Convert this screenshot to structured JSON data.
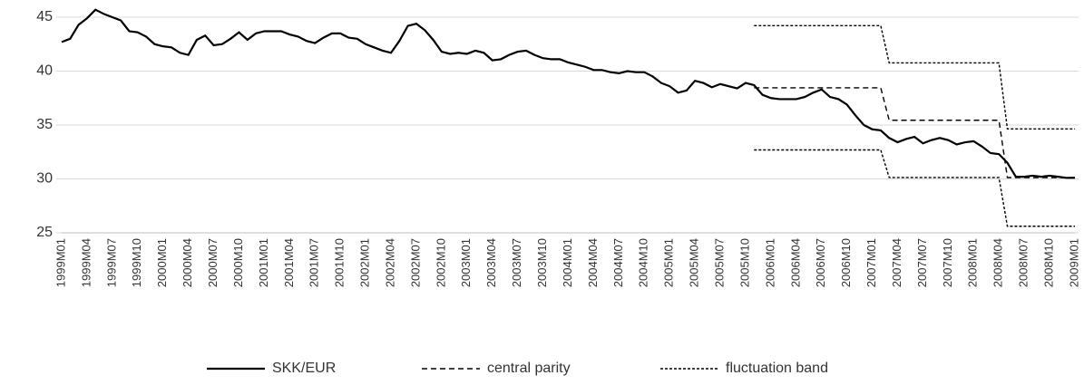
{
  "chart_data": {
    "type": "line",
    "categories": [
      "1999M01",
      null,
      null,
      "1999M04",
      null,
      null,
      "1999M07",
      null,
      null,
      "1999M10",
      null,
      null,
      "2000M01",
      null,
      null,
      "2000M04",
      null,
      null,
      "2000M07",
      null,
      null,
      "2000M10",
      null,
      null,
      "2001M01",
      null,
      null,
      "2001M04",
      null,
      null,
      "2001M07",
      null,
      null,
      "2001M10",
      null,
      null,
      "2002M01",
      null,
      null,
      "2002M04",
      null,
      null,
      "2002M07",
      null,
      null,
      "2002M10",
      null,
      null,
      "2003M01",
      null,
      null,
      "2003M04",
      null,
      null,
      "2003M07",
      null,
      null,
      "2003M10",
      null,
      null,
      "2004M01",
      null,
      null,
      "2004M04",
      null,
      null,
      "2004M07",
      null,
      null,
      "2004M10",
      null,
      null,
      "2005M01",
      null,
      null,
      "2005M04",
      null,
      null,
      "2005M07",
      null,
      null,
      "2005M10",
      null,
      null,
      "2006M01",
      null,
      null,
      "2006M04",
      null,
      null,
      "2006M07",
      null,
      null,
      "2006M10",
      null,
      null,
      "2007M01",
      null,
      null,
      "2007M04",
      null,
      null,
      "2007M07",
      null,
      null,
      "2007M10",
      null,
      null,
      "2008M01",
      null,
      null,
      "2008M04",
      null,
      null,
      "2008M07",
      null,
      null,
      "2008M10",
      null,
      null,
      "2009M01"
    ],
    "series": [
      {
        "name": "SKK/EUR",
        "color": "#000000",
        "dash": "none",
        "values": [
          42.7,
          43.0,
          44.3,
          44.9,
          45.7,
          45.3,
          45.0,
          44.7,
          43.7,
          43.6,
          43.2,
          42.5,
          42.3,
          42.2,
          41.7,
          41.5,
          42.9,
          43.3,
          42.4,
          42.5,
          43.0,
          43.6,
          42.9,
          43.5,
          43.7,
          43.7,
          43.7,
          43.4,
          43.2,
          42.8,
          42.6,
          43.1,
          43.5,
          43.5,
          43.1,
          43.0,
          42.5,
          42.2,
          41.9,
          41.7,
          42.8,
          44.2,
          44.4,
          43.8,
          42.9,
          41.8,
          41.6,
          41.7,
          41.6,
          41.9,
          41.7,
          41.0,
          41.1,
          41.5,
          41.8,
          41.9,
          41.5,
          41.2,
          41.1,
          41.1,
          40.8,
          40.6,
          40.4,
          40.1,
          40.1,
          39.9,
          39.8,
          40.0,
          39.9,
          39.9,
          39.5,
          38.9,
          38.6,
          38.0,
          38.2,
          39.1,
          38.9,
          38.5,
          38.8,
          38.6,
          38.4,
          38.9,
          38.7,
          37.8,
          37.5,
          37.4,
          37.4,
          37.4,
          37.6,
          38.0,
          38.3,
          37.6,
          37.4,
          36.9,
          35.9,
          35.0,
          34.6,
          34.5,
          33.8,
          33.4,
          33.7,
          33.9,
          33.3,
          33.6,
          33.8,
          33.6,
          33.2,
          33.4,
          33.5,
          33.0,
          32.4,
          32.3,
          31.5,
          30.2,
          30.2,
          30.3,
          30.2,
          30.3,
          30.2,
          30.1,
          30.1
        ]
      },
      {
        "name": "central parity",
        "color": "#000000",
        "dash": "6,4",
        "values": [
          null,
          null,
          null,
          null,
          null,
          null,
          null,
          null,
          null,
          null,
          null,
          null,
          null,
          null,
          null,
          null,
          null,
          null,
          null,
          null,
          null,
          null,
          null,
          null,
          null,
          null,
          null,
          null,
          null,
          null,
          null,
          null,
          null,
          null,
          null,
          null,
          null,
          null,
          null,
          null,
          null,
          null,
          null,
          null,
          null,
          null,
          null,
          null,
          null,
          null,
          null,
          null,
          null,
          null,
          null,
          null,
          null,
          null,
          null,
          null,
          null,
          null,
          null,
          null,
          null,
          null,
          null,
          null,
          null,
          null,
          null,
          null,
          null,
          null,
          null,
          null,
          null,
          null,
          null,
          null,
          null,
          null,
          38.455,
          38.455,
          38.455,
          38.455,
          38.455,
          38.455,
          38.455,
          38.455,
          38.455,
          38.455,
          38.455,
          38.455,
          38.455,
          38.455,
          38.455,
          38.455,
          35.4424,
          35.4424,
          35.4424,
          35.4424,
          35.4424,
          35.4424,
          35.4424,
          35.4424,
          35.4424,
          35.4424,
          35.4424,
          35.4424,
          35.4424,
          35.4424,
          30.126,
          30.126,
          30.126,
          30.126,
          30.126,
          30.126,
          30.126,
          30.126,
          30.126
        ]
      },
      {
        "name": "fluctuation band",
        "color": "#000000",
        "dash": "3,2",
        "values": [
          null,
          null,
          null,
          null,
          null,
          null,
          null,
          null,
          null,
          null,
          null,
          null,
          null,
          null,
          null,
          null,
          null,
          null,
          null,
          null,
          null,
          null,
          null,
          null,
          null,
          null,
          null,
          null,
          null,
          null,
          null,
          null,
          null,
          null,
          null,
          null,
          null,
          null,
          null,
          null,
          null,
          null,
          null,
          null,
          null,
          null,
          null,
          null,
          null,
          null,
          null,
          null,
          null,
          null,
          null,
          null,
          null,
          null,
          null,
          null,
          null,
          null,
          null,
          null,
          null,
          null,
          null,
          null,
          null,
          null,
          null,
          null,
          null,
          null,
          null,
          null,
          null,
          null,
          null,
          null,
          null,
          null,
          44.22,
          44.22,
          44.22,
          44.22,
          44.22,
          44.22,
          44.22,
          44.22,
          44.22,
          44.22,
          44.22,
          44.22,
          44.22,
          44.22,
          44.22,
          44.22,
          40.76,
          40.76,
          40.76,
          40.76,
          40.76,
          40.76,
          40.76,
          40.76,
          40.76,
          40.76,
          40.76,
          40.76,
          40.76,
          40.76,
          34.64,
          34.64,
          34.64,
          34.64,
          34.64,
          34.64,
          34.64,
          34.64,
          34.64
        ],
        "lower": [
          null,
          null,
          null,
          null,
          null,
          null,
          null,
          null,
          null,
          null,
          null,
          null,
          null,
          null,
          null,
          null,
          null,
          null,
          null,
          null,
          null,
          null,
          null,
          null,
          null,
          null,
          null,
          null,
          null,
          null,
          null,
          null,
          null,
          null,
          null,
          null,
          null,
          null,
          null,
          null,
          null,
          null,
          null,
          null,
          null,
          null,
          null,
          null,
          null,
          null,
          null,
          null,
          null,
          null,
          null,
          null,
          null,
          null,
          null,
          null,
          null,
          null,
          null,
          null,
          null,
          null,
          null,
          null,
          null,
          null,
          null,
          null,
          null,
          null,
          null,
          null,
          null,
          null,
          null,
          null,
          null,
          null,
          32.69,
          32.69,
          32.69,
          32.69,
          32.69,
          32.69,
          32.69,
          32.69,
          32.69,
          32.69,
          32.69,
          32.69,
          32.69,
          32.69,
          32.69,
          32.69,
          30.13,
          30.13,
          30.13,
          30.13,
          30.13,
          30.13,
          30.13,
          30.13,
          30.13,
          30.13,
          30.13,
          30.13,
          30.13,
          30.13,
          25.61,
          25.61,
          25.61,
          25.61,
          25.61,
          25.61,
          25.61,
          25.61,
          25.61
        ]
      }
    ],
    "ylim": [
      25,
      45
    ],
    "yticks": [
      25,
      30,
      35,
      40,
      45
    ],
    "grid": true,
    "legend": "bottom"
  }
}
